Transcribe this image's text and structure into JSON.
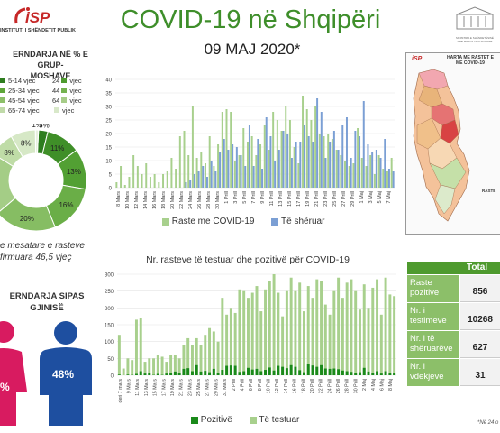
{
  "header": {
    "logo_text": "iSP",
    "institute": "INSTITUTI I SHËNDETIT PUBLIK",
    "title": "COVID-19 në Shqipëri",
    "date": "09 MAJ 2020*",
    "ministry": "MINISTRIA E SHËNDETËSISË DHE MBROJTJES SOCIALE"
  },
  "age_panel": {
    "title_line1": "ERNDARJA NË % E GRUP-",
    "title_line2": "MOSHAVE",
    "legend": [
      {
        "label": "5-14 vjec",
        "color": "#2e7d1f"
      },
      {
        "label": "vjec",
        "color": "#4e9a2e"
      },
      {
        "label": "25-34 vjec",
        "color": "#5ea63a"
      },
      {
        "label": "vjec",
        "color": "#74b24f"
      },
      {
        "label": "45-54 vjec",
        "color": "#8cbf69"
      },
      {
        "label": "vjec",
        "color": "#a6cc88"
      },
      {
        "label": "65-74 vjec",
        "color": "#c0daa9"
      },
      {
        "label": "vjec",
        "color": "#d8e8c9"
      }
    ],
    "legend_prefixes": [
      "",
      "24",
      "",
      "44",
      "",
      "64",
      "",
      ""
    ]
  },
  "donut": {
    "segments": [
      {
        "label": "3%",
        "value": 3,
        "color": "#2e7d1f"
      },
      {
        "label": "11%",
        "value": 11,
        "color": "#3f8f28"
      },
      {
        "label": "13%",
        "value": 13,
        "color": "#52a033"
      },
      {
        "label": "16%",
        "value": 16,
        "color": "#6aae47"
      },
      {
        "label": "20%",
        "value": 20,
        "color": "#86bd63"
      },
      {
        "label": "",
        "value": 20,
        "color": "#a4cd86"
      },
      {
        "label": "8%",
        "value": 8,
        "color": "#bfdca7"
      },
      {
        "label": "8%",
        "value": 8,
        "color": "#d6e8c6"
      },
      {
        "label": "1%",
        "value": 1,
        "color": "#e8f1df"
      }
    ]
  },
  "avg_age": {
    "line1": "e mesatare e rasteve",
    "line2": "firmuara 46,5 vjeç"
  },
  "gender": {
    "title_line1": "ERNDARJA SIPAS",
    "title_line2": "GJINISË",
    "female_pct": "%",
    "male_pct": "48%",
    "female_color": "#d81b60",
    "male_color": "#1e4fa0"
  },
  "chart_data": [
    {
      "type": "bar",
      "title": "",
      "yticks": [
        0,
        5,
        10,
        15,
        20,
        25,
        30,
        35,
        40
      ],
      "ylim": [
        0,
        40
      ],
      "xtick_labels": [
        "8 Mars",
        "10 Mars",
        "12 Mars",
        "14 Mars",
        "16 Mars",
        "18 Mars",
        "20 Mars",
        "22 Mars",
        "24 Mars",
        "26 Mars",
        "28 Mars",
        "30 Mars",
        "1 Prill",
        "3 Prill",
        "5 Prill",
        "7 Prill",
        "9 Prill",
        "11 Prill",
        "13 Prill",
        "15 Prill",
        "17 Prill",
        "19 Prill",
        "21 Prill",
        "23 Prill",
        "25 Prill",
        "27 Prill",
        "29 Prill",
        "1 Maj",
        "3 Maj",
        "5 Maj",
        "7 Maj"
      ],
      "series": [
        {
          "name": "Raste me COVID-19",
          "color": "#a8d08d",
          "values": [
            2,
            8,
            1,
            4,
            12,
            8,
            5,
            9,
            4,
            5,
            2,
            5,
            6,
            11,
            7,
            19,
            21,
            12,
            30,
            11,
            13,
            9,
            19,
            8,
            16,
            28,
            29,
            28,
            10,
            12,
            22,
            17,
            19,
            12,
            16,
            23,
            14,
            28,
            25,
            21,
            30,
            25,
            15,
            9,
            34,
            29,
            25,
            30,
            20,
            19,
            20,
            18,
            14,
            12,
            10,
            8,
            9,
            22,
            11,
            8,
            12,
            5,
            12,
            7,
            6,
            11
          ]
        },
        {
          "name": "Të shëruar",
          "color": "#7b9fd4",
          "values": [
            0,
            0,
            0,
            0,
            0,
            0,
            0,
            0,
            0,
            0,
            0,
            0,
            0,
            0,
            0,
            0,
            2,
            3,
            5,
            6,
            8,
            4,
            10,
            6,
            13,
            18,
            14,
            16,
            15,
            12,
            8,
            23,
            8,
            18,
            7,
            26,
            19,
            10,
            14,
            21,
            20,
            11,
            17,
            17,
            23,
            19,
            17,
            33,
            28,
            11,
            17,
            21,
            14,
            23,
            26,
            11,
            21,
            19,
            32,
            16,
            13,
            14,
            11,
            18,
            7,
            6
          ]
        }
      ]
    },
    {
      "type": "bar",
      "title": "Nr. rasteve të testuar dhe pozitivë për COVID-19",
      "yticks": [
        0,
        50,
        100,
        150,
        200,
        250,
        300
      ],
      "ylim": [
        0,
        300
      ],
      "xtick_labels": [
        "deri 7 mars",
        "9 Mars",
        "11 Mars",
        "13 Mars",
        "15 Mars",
        "17 Mars",
        "19 Mars",
        "21 Mars",
        "23 Mars",
        "25 Mars",
        "27 Mars",
        "29 Mars",
        "31 Mars",
        "2 Prill",
        "4 Prill",
        "6 Prill",
        "8 Prill",
        "10 Prill",
        "12 Prill",
        "14 Prill",
        "16 Prill",
        "18 Prill",
        "20 Prill",
        "22 Prill",
        "24 Prill",
        "26 Prill",
        "28 Prill",
        "30 Prill",
        "2 Maj",
        "4 Maj",
        "6 Maj",
        "8 Maj"
      ],
      "series": [
        {
          "name": "Pozitivë",
          "color": "#1a8a1a",
          "values": [
            2,
            0,
            2,
            1,
            4,
            12,
            5,
            8,
            1,
            4,
            1,
            5,
            6,
            11,
            7,
            19,
            21,
            12,
            30,
            11,
            13,
            9,
            19,
            8,
            16,
            28,
            29,
            28,
            10,
            12,
            22,
            17,
            19,
            12,
            16,
            23,
            14,
            28,
            25,
            21,
            30,
            25,
            15,
            9,
            34,
            29,
            25,
            30,
            20,
            19,
            20,
            18,
            14,
            12,
            10,
            8,
            9,
            22,
            11,
            8,
            12,
            5,
            12,
            7,
            6
          ]
        },
        {
          "name": "Të testuar",
          "color": "#a8d08d",
          "values": [
            120,
            20,
            50,
            45,
            165,
            170,
            40,
            50,
            50,
            60,
            55,
            40,
            60,
            60,
            50,
            90,
            110,
            90,
            110,
            90,
            120,
            140,
            130,
            100,
            230,
            180,
            200,
            185,
            255,
            250,
            230,
            245,
            265,
            190,
            255,
            280,
            300,
            245,
            175,
            250,
            290,
            250,
            275,
            190,
            265,
            230,
            285,
            280,
            210,
            180,
            250,
            290,
            230,
            275,
            285,
            250,
            195,
            270,
            200,
            260,
            285,
            180,
            290,
            240,
            235
          ]
        }
      ]
    }
  ],
  "chart1_legend": [
    {
      "label": "Raste me COVID-19",
      "color": "#a8d08d"
    },
    {
      "label": "Të shëruar",
      "color": "#7b9fd4"
    }
  ],
  "chart2_legend": [
    {
      "label": "Pozitivë",
      "color": "#1a8a1a"
    },
    {
      "label": "Të testuar",
      "color": "#a8d08d"
    }
  ],
  "map": {
    "title_line1": "HARTA ME RASTET E",
    "title_line2": "ME COVID-19",
    "label_raste": "RASTE"
  },
  "stats_table": {
    "header": "Total",
    "rows": [
      {
        "label": "Raste pozitive",
        "value": "856"
      },
      {
        "label": "Nr. i testimeve",
        "value": "10268"
      },
      {
        "label": "Nr. i të shëruarëve",
        "value": "627"
      },
      {
        "label": "Nr. i vdekjeve",
        "value": "31"
      }
    ]
  },
  "footnote": "*Në 24 o"
}
